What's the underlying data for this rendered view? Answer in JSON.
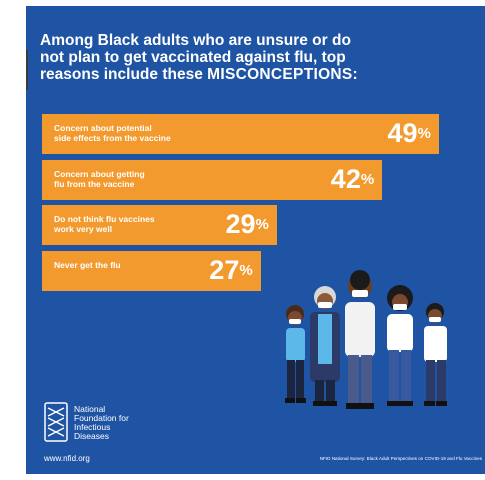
{
  "headline": {
    "line1": "Among Black adults who are unsure or do",
    "line2": "not plan to get vaccinated against flu, top",
    "line3_prefix": "reasons include these ",
    "line3_emphasis": "MISCONCEPTIONS:"
  },
  "chart_data": {
    "type": "bar",
    "orientation": "horizontal",
    "title": "Among Black adults who are unsure or do not plan to get vaccinated against flu, top reasons include these MISCONCEPTIONS:",
    "categories": [
      [
        "Concern about potential",
        "side effects from the vaccine"
      ],
      [
        "Concern about getting",
        "flu from the vaccine"
      ],
      [
        "Do not think flu vaccines",
        "work very well"
      ],
      [
        "Never get the flu"
      ]
    ],
    "values": [
      49,
      42,
      29,
      27
    ],
    "unit": "%",
    "xlim": [
      0,
      100
    ],
    "bar_color": "#f29a2e"
  },
  "footer": {
    "logo_lines": [
      "National",
      "Foundation for",
      "Infectious",
      "Diseases"
    ],
    "url": "www.nfid.org",
    "source": "NFID National Survey: Black Adult Perspectives on COVID-19 and Flu Vaccines"
  },
  "colors": {
    "background": "#1f54a4",
    "accent": "#f29a2e",
    "text": "#ffffff"
  },
  "icons": [
    "nfid-logo-icon",
    "people-group-illustration"
  ]
}
